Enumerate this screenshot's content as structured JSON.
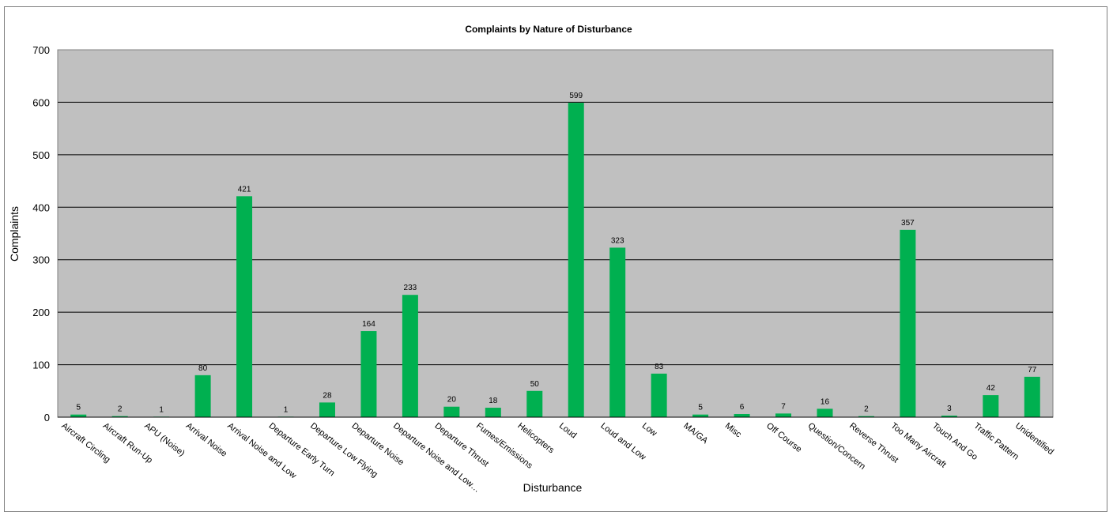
{
  "chart_data": {
    "type": "bar",
    "title": "Complaints by Nature of Disturbance",
    "xlabel": "Disturbance",
    "ylabel": "Complaints",
    "ylim": [
      0,
      700
    ],
    "yticks": [
      "0",
      "100",
      "200",
      "300",
      "400",
      "500",
      "600",
      "700"
    ],
    "grid": true,
    "plot_background": "#c0c0c0",
    "bar_color": "#00b050",
    "categories": [
      "Aircraft Circling",
      "Aircraft Run-Up",
      "APU (Noise)",
      "Arrival Noise",
      "Arrival Noise and Low",
      "Departure Early Turn",
      "Departure Low Flying",
      "Departure Noise",
      "Departure Noise and Low…",
      "Departure Thrust",
      "Fumes/Emissions",
      "Helicopters",
      "Loud",
      "Loud and Low",
      "Low",
      "MA/GA",
      "Misc",
      "Off Course",
      "Question/Concern",
      "Reverse Thrust",
      "Too Many Aircraft",
      "Touch And Go",
      "Traffic Pattern",
      "Unidentified"
    ],
    "values": [
      5,
      2,
      1,
      80,
      421,
      1,
      28,
      164,
      233,
      20,
      18,
      50,
      599,
      323,
      83,
      5,
      6,
      7,
      16,
      2,
      357,
      3,
      42,
      77
    ]
  }
}
